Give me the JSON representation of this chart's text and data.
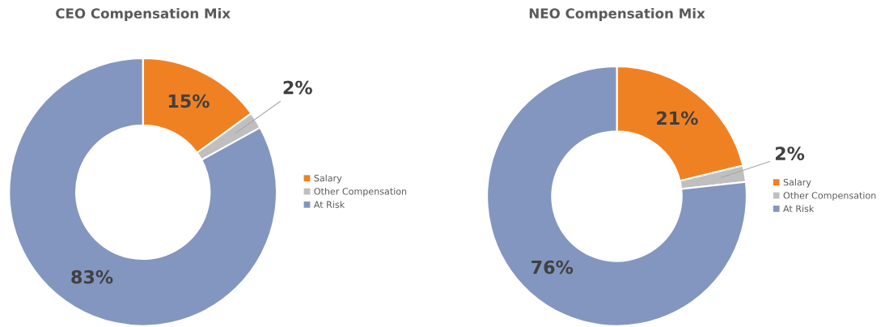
{
  "chart_data": [
    {
      "type": "donut",
      "title": "CEO Compensation Mix",
      "categories": [
        "Salary",
        "Other Compensation",
        "At Risk"
      ],
      "values": [
        15,
        2,
        83
      ],
      "value_labels": [
        "15%",
        "2%",
        "83%"
      ],
      "colors": [
        "#f08122",
        "#bfbfbf",
        "#8396c0"
      ],
      "legend": "right"
    },
    {
      "type": "donut",
      "title": "NEO Compensation Mix",
      "categories": [
        "Salary",
        "Other Compensation",
        "At Risk"
      ],
      "values": [
        21,
        2,
        76
      ],
      "value_labels": [
        "21%",
        "2%",
        "76%"
      ],
      "colors": [
        "#f08122",
        "#bfbfbf",
        "#8396c0"
      ],
      "legend": "right"
    }
  ]
}
